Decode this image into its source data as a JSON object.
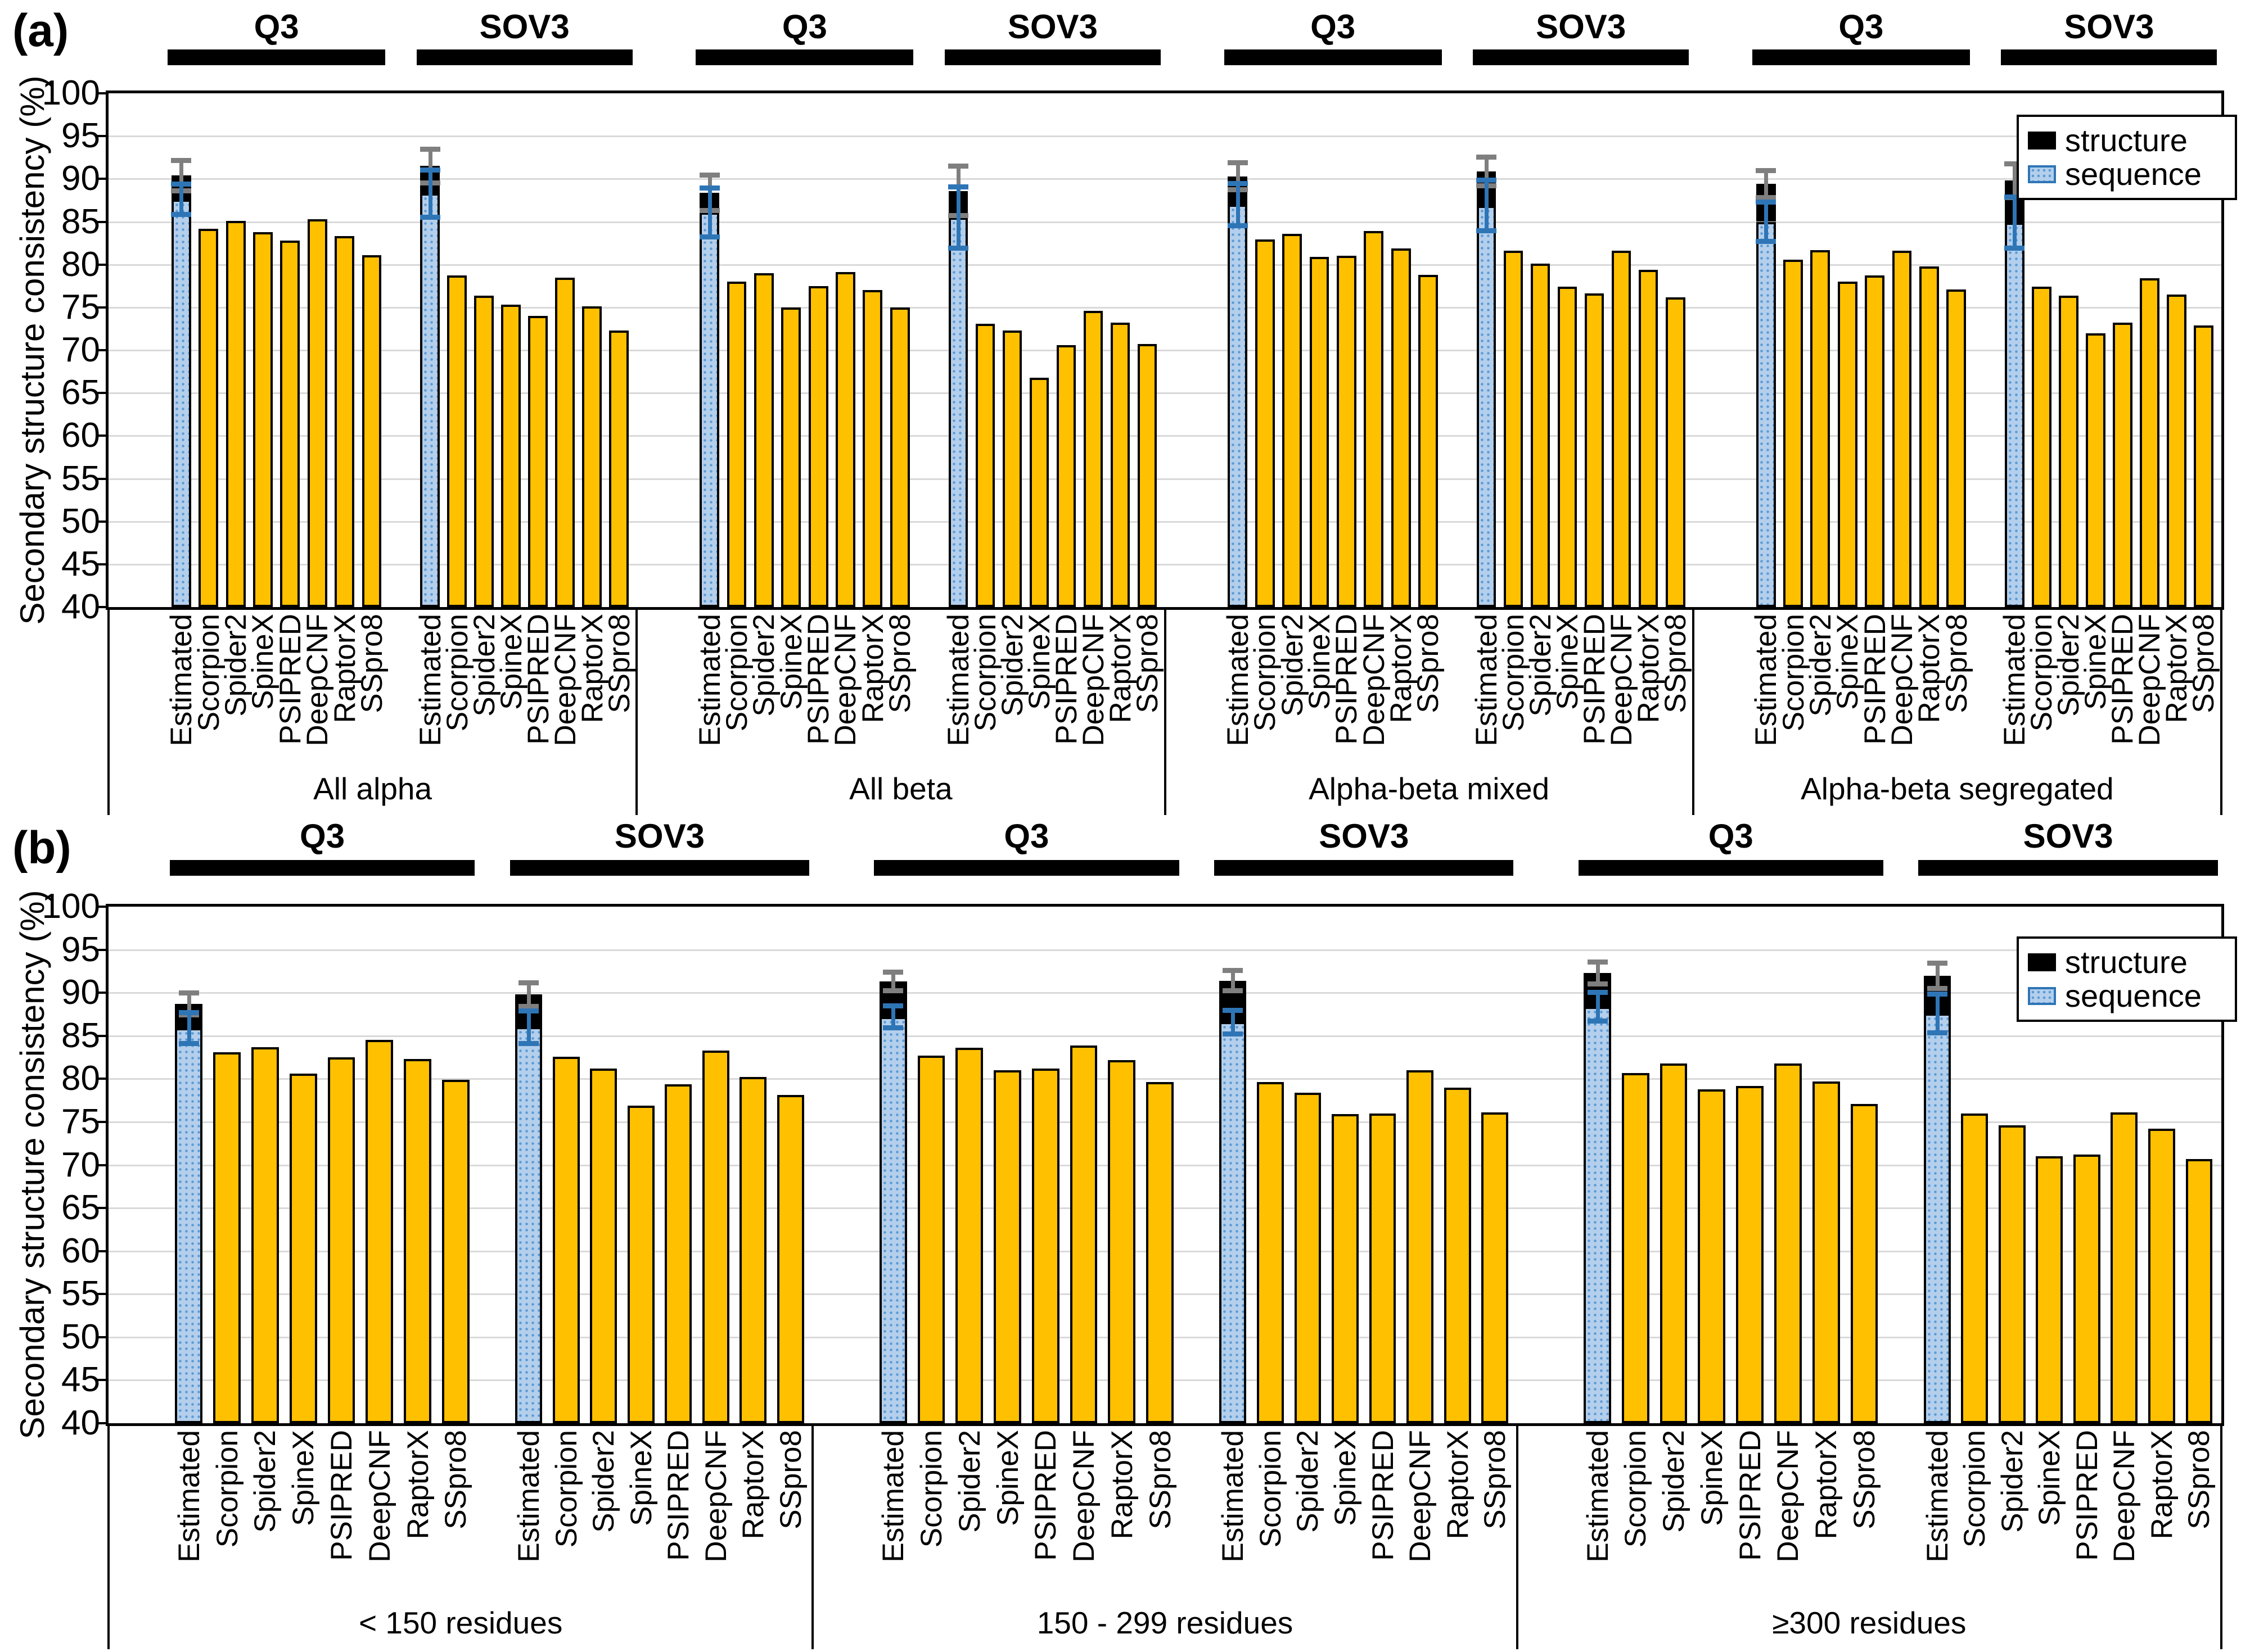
{
  "figure": {
    "legend": {
      "items": [
        {
          "label": "structure",
          "color": "#000000"
        },
        {
          "label": "sequence",
          "color": "#B4CFEC",
          "border": "#2E75B6",
          "dot_color": "#5B9BD5"
        }
      ]
    },
    "colors": {
      "prediction_bar": "#FFC000",
      "structure_bar": "#000000",
      "sequence_bar_fill": "#B4CFEC",
      "sequence_bar_dots": "#5B9BD5",
      "structure_error_bar": "#7F7F7F",
      "sequence_error_bar": "#2E75B6",
      "gridline": "#D9D9D9"
    }
  },
  "chart_data": [
    {
      "panel_label": "(a)",
      "type": "bar",
      "ylabel": "Secondary structure consistency (%)",
      "ylim": [
        40,
        100
      ],
      "yticks": [
        40,
        45,
        50,
        55,
        60,
        65,
        70,
        75,
        80,
        85,
        90,
        95,
        100
      ],
      "grid": "horizontal",
      "legend_position": "top-right",
      "metrics": [
        "Q3",
        "SOV3"
      ],
      "methods": [
        "Estimated",
        "Scorpion",
        "Spider2",
        "SpineX",
        "PSIPRED",
        "DeepCNF",
        "RaptorX",
        "SSpro8"
      ],
      "groups": [
        {
          "label": "All alpha",
          "clusters": [
            {
              "metric": "Q3",
              "estimated": {
                "structure": 90.4,
                "sequence": 87.6,
                "structure_err": 1.8,
                "sequence_err": 1.8
              },
              "values": [
                84.2,
                85.1,
                83.8,
                82.8,
                85.3,
                83.3,
                81.1
              ]
            },
            {
              "metric": "SOV3",
              "estimated": {
                "structure": 91.5,
                "sequence": 88.3,
                "structure_err": 2.0,
                "sequence_err": 2.8
              },
              "values": [
                78.7,
                76.4,
                75.3,
                74.0,
                78.5,
                75.1,
                72.3
              ]
            }
          ]
        },
        {
          "label": "All beta",
          "clusters": [
            {
              "metric": "Q3",
              "estimated": {
                "structure": 88.4,
                "sequence": 86.1,
                "structure_err": 2.1,
                "sequence_err": 2.9
              },
              "values": [
                78.0,
                79.0,
                75.0,
                77.5,
                79.1,
                77.0,
                75.0
              ]
            },
            {
              "metric": "SOV3",
              "estimated": {
                "structure": 88.6,
                "sequence": 85.5,
                "structure_err": 2.9,
                "sequence_err": 3.6
              },
              "values": [
                73.1,
                72.3,
                66.8,
                70.6,
                74.6,
                73.2,
                70.7
              ]
            }
          ]
        },
        {
          "label": "Alpha-beta mixed",
          "clusters": [
            {
              "metric": "Q3",
              "estimated": {
                "structure": 90.3,
                "sequence": 87.0,
                "structure_err": 1.6,
                "sequence_err": 2.5
              },
              "values": [
                82.9,
                83.6,
                80.9,
                81.0,
                83.9,
                81.9,
                78.8
              ]
            },
            {
              "metric": "SOV3",
              "estimated": {
                "structure": 90.9,
                "sequence": 86.9,
                "structure_err": 1.7,
                "sequence_err": 3.0
              },
              "values": [
                81.6,
                80.1,
                77.4,
                76.6,
                81.6,
                79.4,
                76.2
              ]
            }
          ]
        },
        {
          "label": "Alpha-beta segregated",
          "clusters": [
            {
              "metric": "Q3",
              "estimated": {
                "structure": 89.4,
                "sequence": 85.0,
                "structure_err": 1.6,
                "sequence_err": 2.3
              },
              "values": [
                80.6,
                81.7,
                78.0,
                78.7,
                81.6,
                79.8,
                77.1
              ]
            },
            {
              "metric": "SOV3",
              "estimated": {
                "structure": 89.8,
                "sequence": 84.9,
                "structure_err": 2.0,
                "sequence_err": 3.0
              },
              "values": [
                77.4,
                76.4,
                72.0,
                73.2,
                78.4,
                76.5,
                72.9
              ]
            }
          ]
        }
      ]
    },
    {
      "panel_label": "(b)",
      "type": "bar",
      "ylabel": "Secondary structure consistency (%)",
      "ylim": [
        40,
        100
      ],
      "yticks": [
        40,
        45,
        50,
        55,
        60,
        65,
        70,
        75,
        80,
        85,
        90,
        95,
        100
      ],
      "grid": "horizontal",
      "legend_position": "top-right",
      "metrics": [
        "Q3",
        "SOV3"
      ],
      "methods": [
        "Estimated",
        "Scorpion",
        "Spider2",
        "SpineX",
        "PSIPRED",
        "DeepCNF",
        "RaptorX",
        "SSpro8"
      ],
      "groups": [
        {
          "label": "< 150 residues",
          "clusters": [
            {
              "metric": "Q3",
              "estimated": {
                "structure": 88.7,
                "sequence": 85.9,
                "structure_err": 1.3,
                "sequence_err": 1.8
              },
              "values": [
                83.1,
                83.7,
                80.6,
                82.5,
                84.5,
                82.3,
                79.9
              ]
            },
            {
              "metric": "SOV3",
              "estimated": {
                "structure": 89.8,
                "sequence": 86.0,
                "structure_err": 1.4,
                "sequence_err": 1.9
              },
              "values": [
                82.6,
                81.2,
                76.9,
                79.4,
                83.3,
                80.2,
                78.1
              ]
            }
          ]
        },
        {
          "label": "150 - 299 residues",
          "clusters": [
            {
              "metric": "Q3",
              "estimated": {
                "structure": 91.3,
                "sequence": 87.2,
                "structure_err": 1.1,
                "sequence_err": 1.3
              },
              "values": [
                82.7,
                83.6,
                81.0,
                81.2,
                83.9,
                82.2,
                79.6
              ]
            },
            {
              "metric": "SOV3",
              "estimated": {
                "structure": 91.4,
                "sequence": 86.6,
                "structure_err": 1.2,
                "sequence_err": 1.4
              },
              "values": [
                79.6,
                78.4,
                75.9,
                76.0,
                81.0,
                79.0,
                76.1
              ]
            }
          ]
        },
        {
          "label": "≥300 residues",
          "clusters": [
            {
              "metric": "Q3",
              "estimated": {
                "structure": 92.3,
                "sequence": 88.4,
                "structure_err": 1.3,
                "sequence_err": 1.7
              },
              "values": [
                80.7,
                81.8,
                78.8,
                79.2,
                81.8,
                79.7,
                77.1
              ]
            },
            {
              "metric": "SOV3",
              "estimated": {
                "structure": 92.0,
                "sequence": 87.6,
                "structure_err": 1.5,
                "sequence_err": 2.3
              },
              "values": [
                76.0,
                74.6,
                71.0,
                71.2,
                76.1,
                74.2,
                70.7
              ]
            }
          ]
        }
      ]
    }
  ]
}
